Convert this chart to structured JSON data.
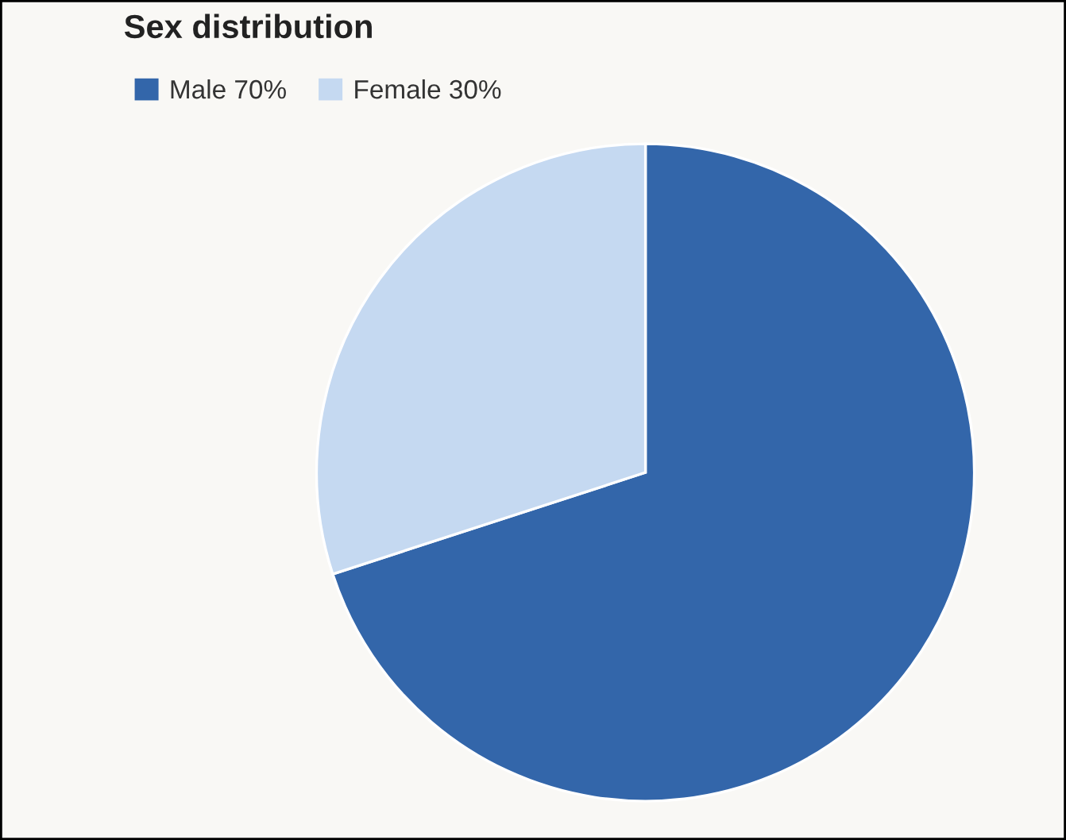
{
  "chart_data": {
    "type": "pie",
    "title": "Sex distribution",
    "categories": [
      "Male",
      "Female"
    ],
    "values": [
      70,
      30
    ],
    "value_labels": [
      "70%",
      "30%"
    ],
    "colors": [
      "#3366aa",
      "#c5d9f1"
    ],
    "legend": "top left"
  }
}
